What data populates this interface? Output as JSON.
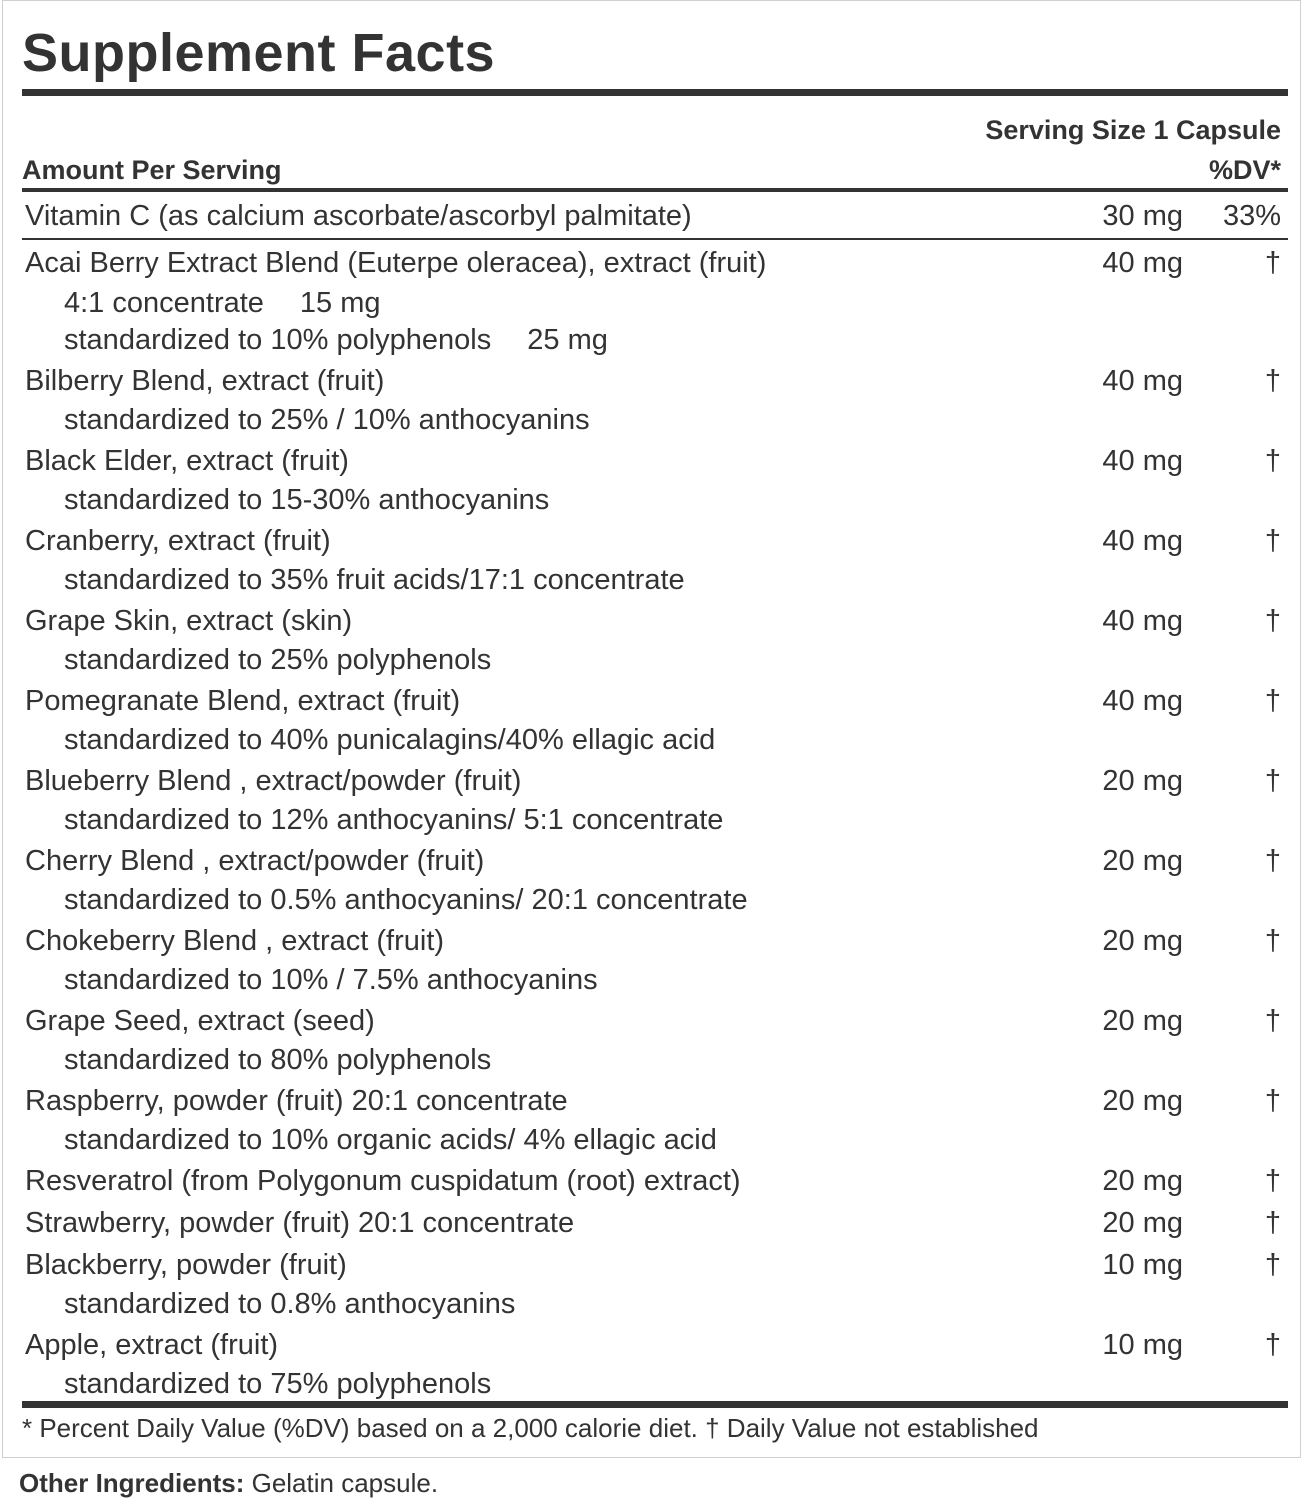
{
  "title": "Supplement Facts",
  "serving_size": "Serving Size 1 Capsule",
  "amount_header": "Amount Per Serving",
  "dv_header": "%DV*",
  "vitamin": {
    "name": "Vitamin C (as calcium ascorbate/ascorbyl palmitate)",
    "amount": "30 mg",
    "dv": "33%"
  },
  "ingredients": [
    {
      "name": "Acai Berry Extract Blend (Euterpe oleracea), extract (fruit)",
      "amount": "40 mg",
      "dv": "†",
      "subs": [
        {
          "text": "4:1 concentrate",
          "amount": "15 mg"
        },
        {
          "text": "standardized to 10% polyphenols",
          "amount": "25 mg"
        }
      ]
    },
    {
      "name": "Bilberry Blend, extract (fruit)",
      "amount": "40 mg",
      "dv": "†",
      "subs": [
        {
          "text": "standardized to 25% / 10% anthocyanins",
          "amount": ""
        }
      ]
    },
    {
      "name": "Black Elder, extract (fruit)",
      "amount": "40 mg",
      "dv": "†",
      "subs": [
        {
          "text": "standardized to 15-30% anthocyanins",
          "amount": ""
        }
      ]
    },
    {
      "name": "Cranberry, extract (fruit)",
      "amount": "40 mg",
      "dv": "†",
      "subs": [
        {
          "text": "standardized to 35% fruit acids/17:1 concentrate",
          "amount": ""
        }
      ]
    },
    {
      "name": "Grape Skin, extract (skin)",
      "amount": "40 mg",
      "dv": "†",
      "subs": [
        {
          "text": "standardized to 25% polyphenols",
          "amount": ""
        }
      ]
    },
    {
      "name": "Pomegranate Blend, extract (fruit)",
      "amount": "40 mg",
      "dv": "†",
      "subs": [
        {
          "text": "standardized to 40% punicalagins/40% ellagic acid",
          "amount": ""
        }
      ]
    },
    {
      "name": "Blueberry Blend , extract/powder (fruit)",
      "amount": "20 mg",
      "dv": "†",
      "subs": [
        {
          "text": "standardized to 12% anthocyanins/ 5:1 concentrate",
          "amount": ""
        }
      ]
    },
    {
      "name": "Cherry Blend , extract/powder (fruit)",
      "amount": "20 mg",
      "dv": "†",
      "subs": [
        {
          "text": "standardized to 0.5% anthocyanins/ 20:1 concentrate",
          "amount": ""
        }
      ]
    },
    {
      "name": "Chokeberry Blend , extract (fruit)",
      "amount": "20 mg",
      "dv": "†",
      "subs": [
        {
          "text": "standardized to 10% / 7.5% anthocyanins",
          "amount": ""
        }
      ]
    },
    {
      "name": "Grape Seed, extract (seed)",
      "amount": "20 mg",
      "dv": "†",
      "subs": [
        {
          "text": "standardized to 80% polyphenols",
          "amount": ""
        }
      ]
    },
    {
      "name": "Raspberry, powder (fruit) 20:1 concentrate",
      "amount": "20 mg",
      "dv": "†",
      "subs": [
        {
          "text": "standardized to 10% organic acids/ 4% ellagic acid",
          "amount": ""
        }
      ]
    },
    {
      "name": "Resveratrol (from Polygonum cuspidatum (root) extract)",
      "amount": "20 mg",
      "dv": "†",
      "subs": []
    },
    {
      "name": "Strawberry, powder (fruit) 20:1 concentrate",
      "amount": "20 mg",
      "dv": "†",
      "subs": []
    },
    {
      "name": "Blackberry, powder (fruit)",
      "amount": "10 mg",
      "dv": "†",
      "subs": [
        {
          "text": "standardized to 0.8% anthocyanins",
          "amount": ""
        }
      ]
    },
    {
      "name": "Apple, extract (fruit)",
      "amount": "10 mg",
      "dv": "†",
      "subs": [
        {
          "text": "standardized to 75% polyphenols",
          "amount": ""
        }
      ]
    }
  ],
  "footnote": "* Percent Daily Value (%DV) based on a 2,000 calorie diet. † Daily Value not established",
  "other_ingredients": {
    "label": "Other Ingredients:",
    "value": "Gelatin capsule."
  }
}
